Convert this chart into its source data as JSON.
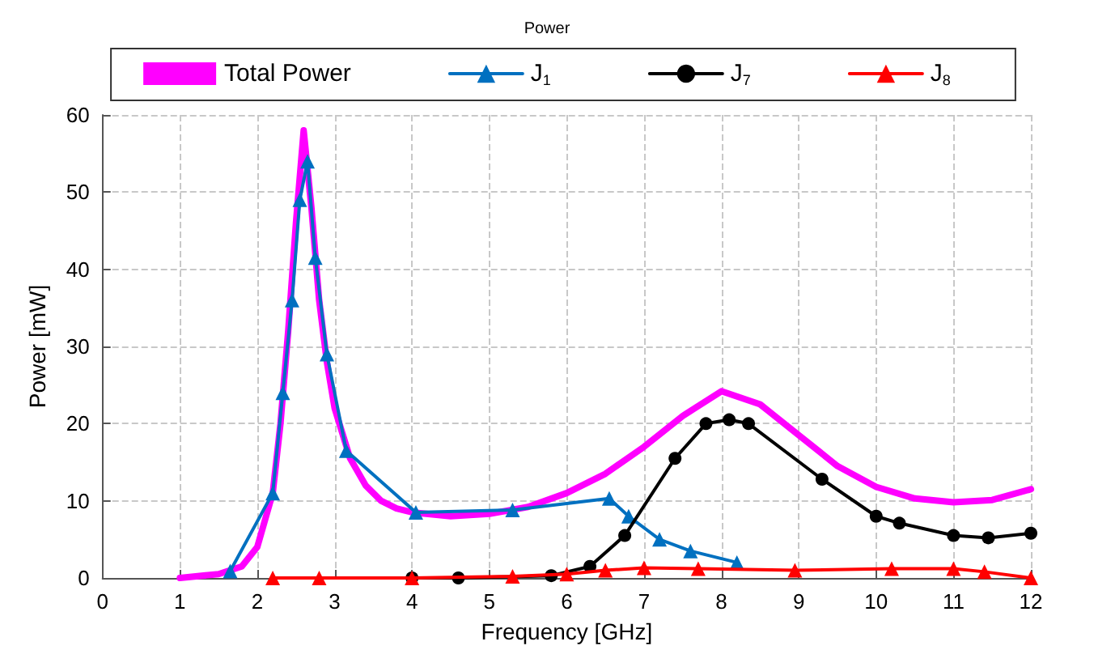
{
  "chart_data": {
    "type": "line",
    "title": "Power",
    "xlabel": "Frequency [GHz]",
    "ylabel": "Power [mW]",
    "xlim": [
      0,
      12
    ],
    "xticks": [
      0,
      1,
      2,
      3,
      4,
      5,
      6,
      7,
      8,
      9,
      10,
      11,
      12
    ],
    "ylim": [
      0,
      60
    ],
    "yticks": [
      0,
      10,
      20,
      30,
      40,
      50,
      60
    ],
    "grid": true,
    "legend": "top",
    "line_style": "solid",
    "series": [
      {
        "name": "Total Power",
        "color": "#ff00ff",
        "marker": "none",
        "x": [
          1,
          1.5,
          1.8,
          2.0,
          2.2,
          2.3,
          2.4,
          2.5,
          2.6,
          2.7,
          2.8,
          2.9,
          3.0,
          3.2,
          3.4,
          3.6,
          3.8,
          4.0,
          4.5,
          5,
          5.5,
          6,
          6.5,
          7,
          7.5,
          8,
          8.5,
          9,
          9.5,
          10,
          10.5,
          11,
          11.5,
          12
        ],
        "values": [
          0,
          0.5,
          1.5,
          4,
          11,
          20,
          32,
          46,
          58,
          48,
          36,
          28,
          22,
          15.5,
          12,
          10,
          9,
          8.5,
          8,
          8.3,
          9.2,
          11,
          13.5,
          17,
          21,
          24.2,
          22.5,
          18.5,
          14.5,
          11.8,
          10.3,
          9.8,
          10.1,
          11.5
        ]
      },
      {
        "name": "J$_{1}$",
        "color": "#0070c0",
        "marker": "triangle",
        "x": [
          1.65,
          2.2,
          2.33,
          2.45,
          2.55,
          2.65,
          2.75,
          2.9,
          3.15,
          4.05,
          5.3,
          6.55,
          6.8,
          7.2,
          7.6,
          8.2
        ],
        "values": [
          0.9,
          11,
          24,
          36,
          49,
          54,
          41.5,
          29,
          16.5,
          8.5,
          8.8,
          10.3,
          8,
          5,
          3.5,
          2
        ]
      },
      {
        "name": "J$_{7}$",
        "color": "#000000",
        "marker": "circle",
        "x": [
          4,
          4.6,
          5.8,
          6.3,
          6.75,
          7.4,
          7.8,
          8.1,
          8.35,
          9.3,
          10.0,
          10.3,
          11,
          11.45,
          12
        ],
        "values": [
          0,
          0,
          0.3,
          1.5,
          5.5,
          15.5,
          20,
          20.5,
          20,
          12.8,
          8,
          7.1,
          5.5,
          5.2,
          5.8
        ]
      },
      {
        "name": "J$_{8}$",
        "color": "#ff0000",
        "marker": "triangle",
        "x": [
          2.2,
          2.8,
          4,
          5.3,
          6.0,
          6.5,
          7,
          7.7,
          8.95,
          10.2,
          11.0,
          11.4,
          12
        ],
        "values": [
          0,
          0,
          0,
          0.2,
          0.5,
          1,
          1.3,
          1.2,
          1,
          1.2,
          1.2,
          0.8,
          0
        ]
      }
    ]
  }
}
